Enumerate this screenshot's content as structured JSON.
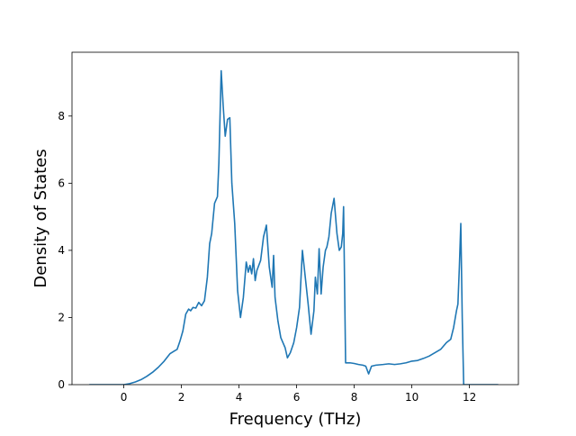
{
  "chart_data": {
    "type": "line",
    "title": "",
    "xlabel": "Frequency (THz)",
    "ylabel": "Density of States",
    "xlim": [
      -1.8,
      13.7
    ],
    "ylim": [
      0,
      9.9
    ],
    "xticks": [
      0,
      2,
      4,
      6,
      8,
      10,
      12
    ],
    "yticks": [
      0,
      2,
      4,
      6,
      8
    ],
    "grid": false,
    "legend": "none",
    "series_color": "#1f77b4",
    "series": [
      {
        "x": [
          -1.2,
          -0.5,
          0.0,
          0.2,
          0.4,
          0.6,
          0.8,
          1.0,
          1.2,
          1.4,
          1.6,
          1.75,
          1.85,
          1.95,
          2.05,
          2.15,
          2.25,
          2.32,
          2.4,
          2.5,
          2.6,
          2.7,
          2.8,
          2.9,
          2.98,
          3.05,
          3.15,
          3.25,
          3.3,
          3.38,
          3.45,
          3.52,
          3.6,
          3.68,
          3.75,
          3.85,
          3.95,
          4.05,
          4.15,
          4.25,
          4.32,
          4.38,
          4.44,
          4.5,
          4.56,
          4.62,
          4.75,
          4.85,
          4.95,
          5.05,
          5.15,
          5.2,
          5.25,
          5.35,
          5.45,
          5.6,
          5.68,
          5.78,
          5.9,
          6.0,
          6.1,
          6.2,
          6.3,
          6.4,
          6.5,
          6.6,
          6.65,
          6.72,
          6.78,
          6.85,
          6.92,
          7.0,
          7.05,
          7.12,
          7.2,
          7.3,
          7.4,
          7.48,
          7.55,
          7.6,
          7.63,
          7.7,
          7.85,
          8.0,
          8.15,
          8.3,
          8.4,
          8.5,
          8.6,
          8.75,
          9.0,
          9.2,
          9.4,
          9.6,
          9.8,
          10.0,
          10.2,
          10.4,
          10.6,
          10.8,
          11.0,
          11.1,
          11.2,
          11.35,
          11.45,
          11.55,
          11.6,
          11.65,
          11.7,
          11.75,
          11.8,
          12.0,
          12.5,
          13.0
        ],
        "y": [
          0,
          0,
          0,
          0.03,
          0.08,
          0.15,
          0.25,
          0.37,
          0.52,
          0.7,
          0.92,
          1.0,
          1.05,
          1.3,
          1.6,
          2.1,
          2.25,
          2.2,
          2.3,
          2.28,
          2.45,
          2.35,
          2.5,
          3.2,
          4.2,
          4.5,
          5.4,
          5.6,
          6.6,
          9.35,
          8.3,
          7.4,
          7.9,
          7.95,
          6.0,
          4.8,
          2.8,
          2.0,
          2.6,
          3.65,
          3.35,
          3.55,
          3.3,
          3.75,
          3.1,
          3.4,
          3.7,
          4.4,
          4.75,
          3.5,
          2.9,
          3.85,
          2.6,
          1.9,
          1.4,
          1.1,
          0.8,
          0.95,
          1.25,
          1.7,
          2.3,
          4.0,
          3.2,
          2.4,
          1.5,
          2.2,
          3.2,
          2.7,
          4.05,
          2.7,
          3.5,
          4.0,
          4.1,
          4.4,
          5.1,
          5.55,
          4.5,
          4.0,
          4.1,
          4.5,
          5.3,
          0.65,
          0.65,
          0.63,
          0.6,
          0.58,
          0.55,
          0.32,
          0.55,
          0.58,
          0.6,
          0.62,
          0.6,
          0.62,
          0.65,
          0.7,
          0.72,
          0.78,
          0.85,
          0.95,
          1.05,
          1.15,
          1.25,
          1.35,
          1.7,
          2.2,
          2.4,
          3.5,
          4.8,
          2.0,
          0,
          0,
          0,
          0
        ]
      }
    ]
  }
}
